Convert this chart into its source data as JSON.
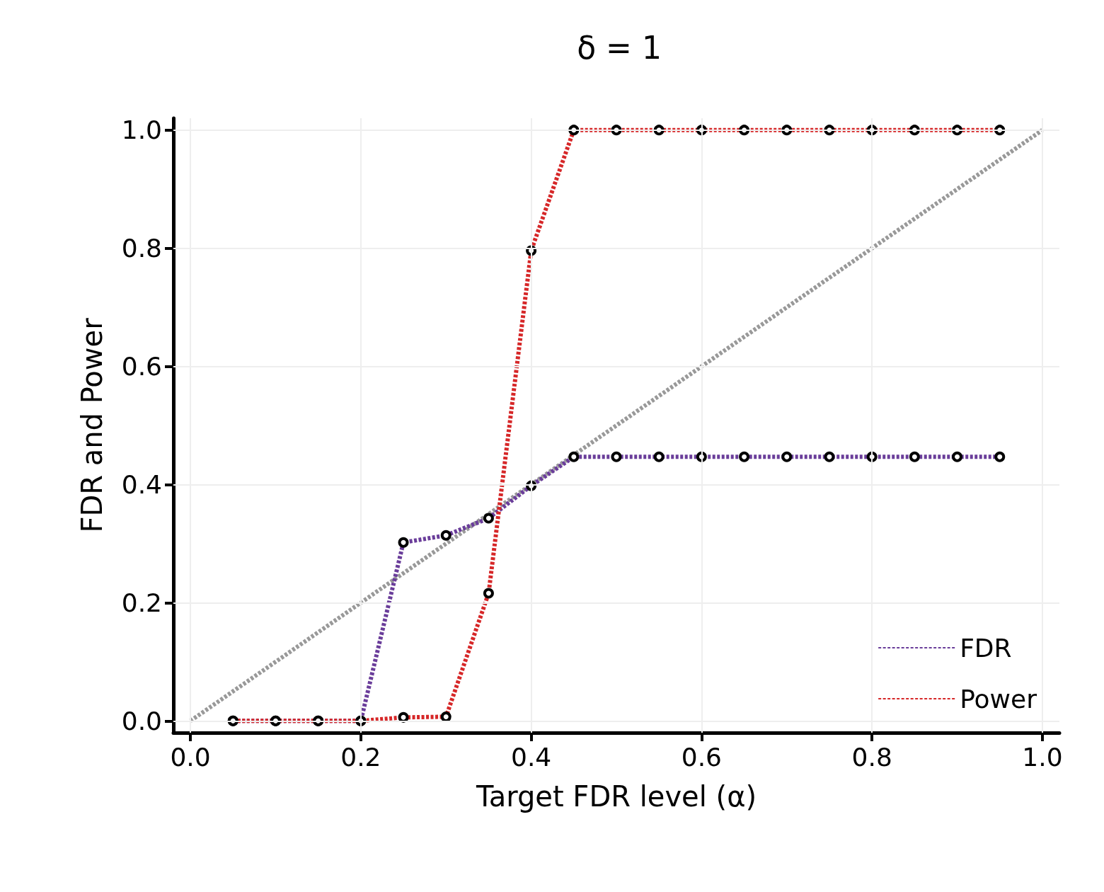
{
  "chart_data": {
    "type": "line",
    "title": "δ = 1",
    "xlabel": "Target FDR level (α)",
    "ylabel": "FDR and Power",
    "x": [
      0.05,
      0.1,
      0.15,
      0.2,
      0.25,
      0.3,
      0.35,
      0.4,
      0.45,
      0.5,
      0.55,
      0.6,
      0.65,
      0.7,
      0.75,
      0.8,
      0.85,
      0.9,
      0.95
    ],
    "series": [
      {
        "x": [
          0,
          1
        ],
        "values": [
          0,
          1
        ],
        "color": "#999999",
        "marker": "none",
        "line_style": "dashed"
      },
      {
        "name": "FDR",
        "color": "#6a3d9a",
        "values": [
          0,
          0,
          0,
          0,
          0.302,
          0.314,
          0.343,
          0.398,
          0.447,
          0.447,
          0.447,
          0.447,
          0.447,
          0.447,
          0.447,
          0.447,
          0.447,
          0.447,
          0.447
        ]
      },
      {
        "name": "Power",
        "color": "#d62728",
        "values": [
          0,
          0,
          0,
          0,
          0.006,
          0.007,
          0.216,
          0.796,
          1,
          1,
          1,
          1,
          1,
          1,
          1,
          1,
          1,
          1,
          1
        ]
      }
    ],
    "marker": "circle",
    "line_style": "dashed",
    "grid": true,
    "legend": "bottom right",
    "xlim": [
      -0.02,
      1.02
    ],
    "ylim": [
      -0.02,
      1.02
    ],
    "xticks": [
      {
        "value": 0,
        "label": "0.0"
      },
      {
        "value": 0.2,
        "label": "0.2"
      },
      {
        "value": 0.4,
        "label": "0.4"
      },
      {
        "value": 0.6,
        "label": "0.6"
      },
      {
        "value": 0.8,
        "label": "0.8"
      },
      {
        "value": 1,
        "label": "1.0"
      }
    ],
    "yticks": [
      {
        "value": 0,
        "label": "0.0"
      },
      {
        "value": 0.2,
        "label": "0.2"
      },
      {
        "value": 0.4,
        "label": "0.4"
      },
      {
        "value": 0.6,
        "label": "0.6"
      },
      {
        "value": 0.8,
        "label": "0.8"
      },
      {
        "value": 1,
        "label": "1.0"
      }
    ]
  }
}
